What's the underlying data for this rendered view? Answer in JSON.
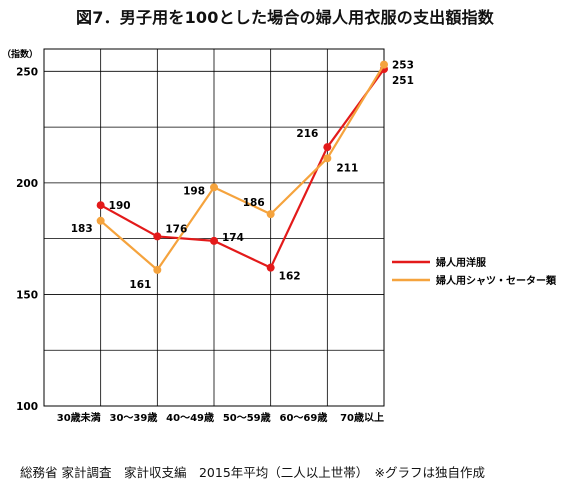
{
  "chart_data": {
    "type": "line",
    "title": "図7．男子用を100とした場合の婦人用衣服の支出額指数",
    "ylabel": "（指数）",
    "xlabel": "",
    "ylim": [
      100,
      260
    ],
    "yticks": [
      100,
      150,
      200,
      250
    ],
    "categories": [
      "30歳未満",
      "30～39歳",
      "40～49歳",
      "50～59歳",
      "60～69歳",
      "70歳以上"
    ],
    "grid": true,
    "legend_position": "right",
    "series": [
      {
        "name": "婦人用洋服",
        "color": "#e31a1a",
        "values": [
          190,
          176,
          174,
          162,
          216,
          251
        ],
        "labels": [
          "190",
          "176",
          "174",
          "162",
          "216",
          "251"
        ]
      },
      {
        "name": "婦人用シャツ・セーター類",
        "color": "#f5a33d",
        "values": [
          183,
          161,
          198,
          186,
          211,
          253
        ],
        "labels": [
          "183",
          "161",
          "198",
          "186",
          "211",
          "253"
        ]
      }
    ]
  },
  "source_note": "総務省 家計調査　家計収支編　2015年平均（二人以上世帯）　※グラフは独自作成"
}
